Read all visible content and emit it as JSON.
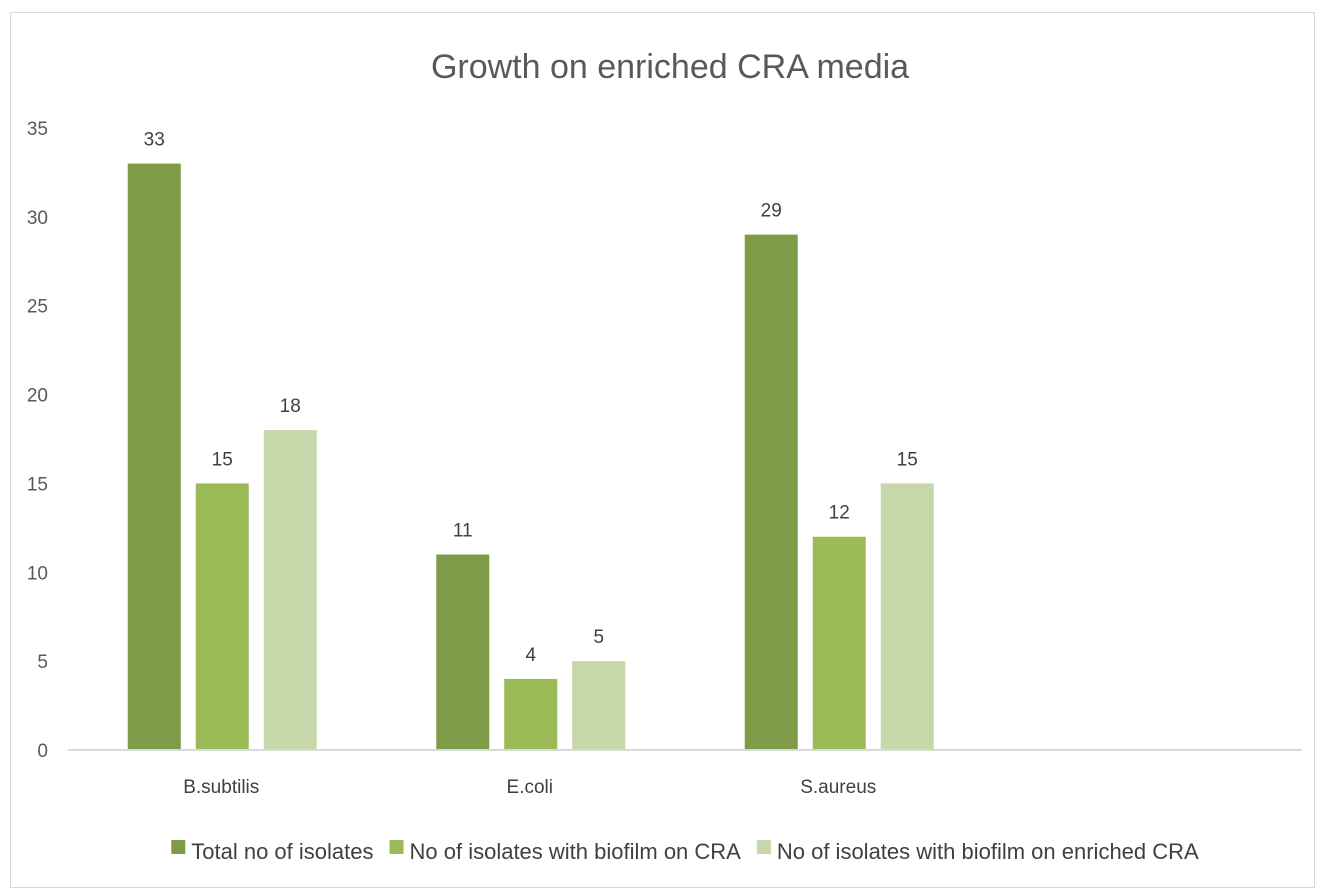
{
  "chart_data": {
    "type": "bar",
    "title": "Growth on enriched CRA media",
    "categories": [
      "B.subtilis",
      "E.coli",
      "S.aureus",
      ""
    ],
    "series": [
      {
        "name": "Total no of isolates",
        "values": [
          33,
          11,
          29,
          null
        ],
        "color": "#7e9b48"
      },
      {
        "name": "No of isolates with biofilm on CRA",
        "values": [
          15,
          4,
          12,
          null
        ],
        "color": "#9bbb59"
      },
      {
        "name": "No of isolates with biofilm on enriched CRA",
        "values": [
          18,
          5,
          15,
          null
        ],
        "color": "#c6d7a9"
      }
    ],
    "ylim": [
      0,
      35
    ],
    "yticks": [
      0,
      5,
      10,
      15,
      20,
      25,
      30,
      35
    ],
    "data_labels": true,
    "grid": false,
    "legend": "bottom",
    "axis_color": "#d9d9d9"
  }
}
